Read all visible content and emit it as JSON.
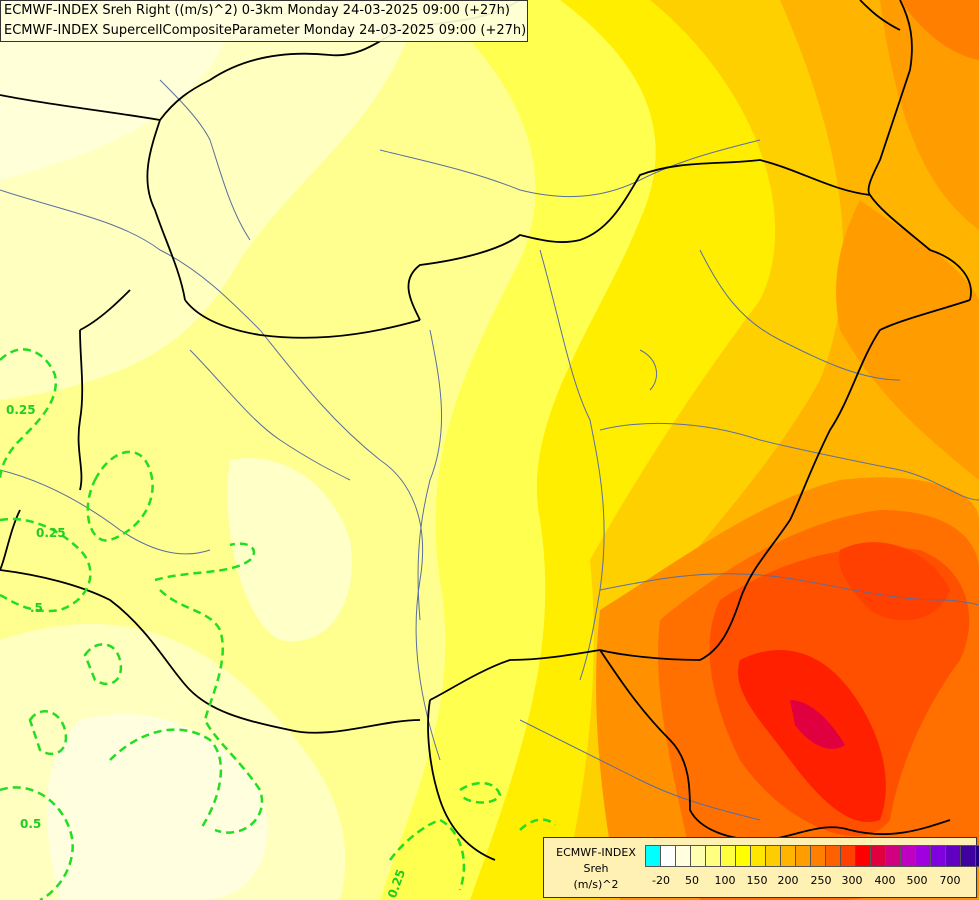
{
  "title_lines": [
    "ECMWF-INDEX Sreh Right ((m/s)^2) 0-3km Monday 24-03-2025 09:00 (+27h)",
    "ECMWF-INDEX SupercellCompositeParameter Monday 24-03-2025 09:00 (+27h)"
  ],
  "contour_labels": [
    "0.25",
    "0.25",
    ".5",
    "0.5",
    "0.25"
  ],
  "legend": {
    "title_lines": [
      "ECMWF-INDEX",
      "Sreh",
      "(m/s)^2"
    ],
    "ticks": [
      "-20",
      "50",
      "100",
      "150",
      "200",
      "250",
      "300",
      "400",
      "500",
      "700"
    ],
    "colors": [
      "#00ffff",
      "#ffffff",
      "#ffffe0",
      "#ffffb0",
      "#ffff80",
      "#ffff40",
      "#ffff00",
      "#ffe600",
      "#ffcc00",
      "#ffb400",
      "#ff9c00",
      "#ff8000",
      "#ff6000",
      "#ff4000",
      "#ff0000",
      "#e00040",
      "#d00080",
      "#c000c0",
      "#a000e0",
      "#8000e0",
      "#6000c0",
      "#4000a0",
      "#200080"
    ]
  },
  "colors": {
    "contour": "#22dd22",
    "border": "#000000",
    "river": "#5a6e9e"
  }
}
